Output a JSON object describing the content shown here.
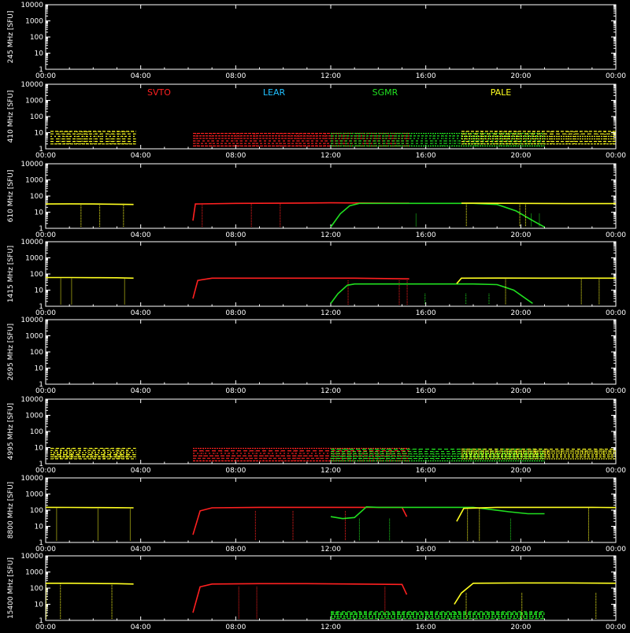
{
  "chart_data": {
    "type": "line",
    "yaxis_unit_label": "[SFU]",
    "x_ticks": [
      "00:00",
      "04:00",
      "08:00",
      "12:00",
      "16:00",
      "20:00",
      "00:00"
    ],
    "y_ticks": [
      "1",
      "10",
      "100",
      "1000",
      "10000"
    ],
    "y_scale": "log",
    "ylim": [
      1,
      10000
    ],
    "xlim_hours": [
      0,
      24
    ],
    "stations": [
      {
        "name": "SVTO",
        "color": "#ff2020"
      },
      {
        "name": "LEAR",
        "color": "#20c0ff"
      },
      {
        "name": "SGMR",
        "color": "#20e020"
      },
      {
        "name": "PALE",
        "color": "#ffff20"
      }
    ],
    "panels": [
      {
        "label": "245 MHz",
        "series": []
      },
      {
        "label": "410 MHz",
        "show_legend": true,
        "series": [
          {
            "station": "PALE",
            "style": "scatter",
            "x": [
              0.2,
              3.8
            ],
            "y": [
              2,
              12
            ]
          },
          {
            "station": "SVTO",
            "style": "scatter",
            "x": [
              6.2,
              15.3
            ],
            "y": [
              1.5,
              9
            ]
          },
          {
            "station": "SGMR",
            "style": "scatter",
            "x": [
              12.0,
              21.0
            ],
            "y": [
              1.5,
              9
            ]
          },
          {
            "station": "PALE",
            "style": "scatter",
            "x": [
              17.5,
              24.0
            ],
            "y": [
              2,
              12
            ]
          }
        ]
      },
      {
        "label": "610 MHz",
        "series": [
          {
            "station": "PALE",
            "style": "line",
            "x": [
              0,
              1,
              2,
              3,
              3.7
            ],
            "y": [
              32,
              33,
              32,
              31,
              30
            ]
          },
          {
            "station": "SVTO",
            "style": "line",
            "x": [
              6.2,
              6.3,
              8,
              10,
              12,
              14,
              15.3
            ],
            "y": [
              3,
              32,
              35,
              36,
              38,
              37,
              36
            ]
          },
          {
            "station": "SGMR",
            "style": "line",
            "x": [
              12.0,
              12.4,
              12.8,
              13.2,
              14,
              16,
              18,
              19,
              19.8,
              20.5,
              21.0
            ],
            "y": [
              1.2,
              8,
              25,
              35,
              35,
              35,
              35,
              30,
              12,
              3,
              1.2
            ]
          },
          {
            "station": "PALE",
            "style": "line",
            "x": [
              17.5,
              18,
              20,
              22,
              24
            ],
            "y": [
              36,
              36,
              35,
              34,
              34
            ]
          }
        ]
      },
      {
        "label": "1415 MHz",
        "series": [
          {
            "station": "PALE",
            "style": "line",
            "x": [
              0,
              1,
              2,
              3,
              3.7
            ],
            "y": [
              60,
              60,
              59,
              58,
              55
            ]
          },
          {
            "station": "SVTO",
            "style": "line",
            "x": [
              6.2,
              6.4,
              7,
              9,
              11,
              13,
              15.3
            ],
            "y": [
              3,
              40,
              55,
              55,
              55,
              55,
              50
            ]
          },
          {
            "station": "SGMR",
            "style": "line",
            "x": [
              12.0,
              12.3,
              12.7,
              13,
              14,
              16,
              18,
              19,
              19.7,
              20.5
            ],
            "y": [
              1.5,
              6,
              20,
              24,
              24,
              24,
              24,
              22,
              10,
              1.5
            ]
          },
          {
            "station": "PALE",
            "style": "line",
            "x": [
              17.3,
              17.5,
              19,
              21,
              23,
              24
            ],
            "y": [
              25,
              55,
              56,
              55,
              55,
              55
            ]
          }
        ]
      },
      {
        "label": "2695 MHz",
        "series": []
      },
      {
        "label": "4995 MHz",
        "series": [
          {
            "station": "PALE",
            "style": "scatter",
            "x": [
              0.2,
              3.8
            ],
            "y": [
              2,
              9
            ]
          },
          {
            "station": "SVTO",
            "style": "scatter",
            "x": [
              6.2,
              15.3
            ],
            "y": [
              1.5,
              9
            ]
          },
          {
            "station": "SGMR",
            "style": "scatter",
            "x": [
              12.0,
              21.0
            ],
            "y": [
              1.5,
              8
            ]
          },
          {
            "station": "PALE",
            "style": "scatter",
            "x": [
              17.5,
              24.0
            ],
            "y": [
              2,
              8
            ]
          }
        ]
      },
      {
        "label": "8800 MHz",
        "series": [
          {
            "station": "PALE",
            "style": "line",
            "x": [
              0,
              1,
              2,
              3,
              3.7
            ],
            "y": [
              150,
              148,
              145,
              143,
              140
            ]
          },
          {
            "station": "SVTO",
            "style": "line",
            "x": [
              6.2,
              6.5,
              7,
              9,
              11,
              13,
              15.0,
              15.2
            ],
            "y": [
              3,
              90,
              140,
              150,
              150,
              150,
              150,
              40
            ]
          },
          {
            "station": "SGMR",
            "style": "line",
            "x": [
              12.0,
              12.5,
              13.0,
              13.5,
              14,
              16,
              18,
              19.5,
              20.3,
              21.0
            ],
            "y": [
              40,
              30,
              35,
              160,
              150,
              150,
              150,
              80,
              60,
              60
            ]
          },
          {
            "station": "PALE",
            "style": "line",
            "x": [
              17.3,
              17.6,
              19,
              21,
              23,
              24
            ],
            "y": [
              20,
              130,
              150,
              150,
              150,
              145
            ]
          }
        ]
      },
      {
        "label": "15400 MHz",
        "series": [
          {
            "station": "PALE",
            "style": "line",
            "x": [
              0,
              1,
              2,
              3,
              3.7
            ],
            "y": [
              200,
              200,
              195,
              190,
              180
            ]
          },
          {
            "station": "SVTO",
            "style": "line",
            "x": [
              6.2,
              6.5,
              7,
              9,
              11,
              13,
              15.0,
              15.2
            ],
            "y": [
              3,
              120,
              180,
              190,
              190,
              180,
              170,
              40
            ]
          },
          {
            "station": "SGMR",
            "style": "scatter",
            "x": [
              12.0,
              21.0
            ],
            "y": [
              1.3,
              3.5
            ]
          },
          {
            "station": "PALE",
            "style": "line",
            "x": [
              17.2,
              17.5,
              18,
              20,
              22,
              24
            ],
            "y": [
              10,
              50,
              200,
              210,
              210,
              200
            ]
          }
        ]
      }
    ]
  }
}
